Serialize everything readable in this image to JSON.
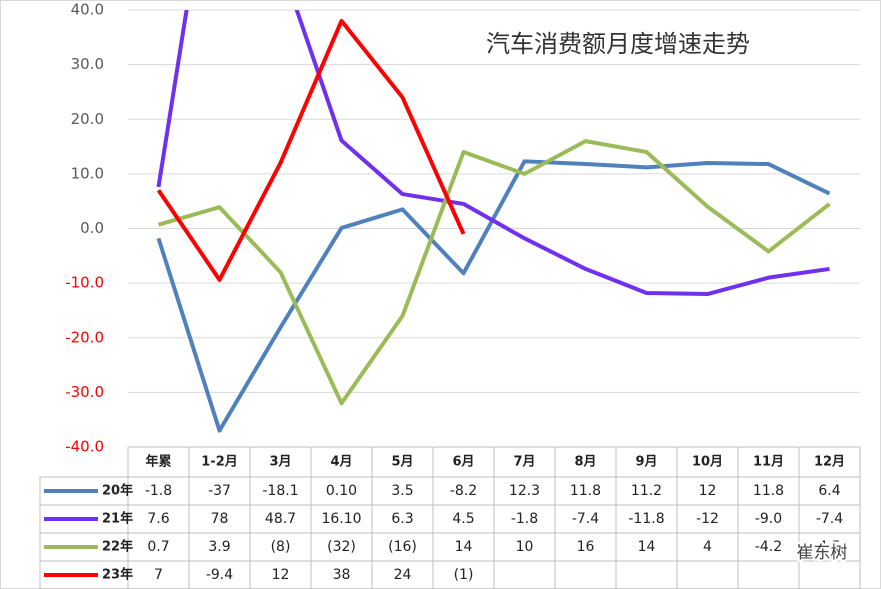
{
  "chart_data": {
    "type": "line",
    "title": "汽车消费额月度增速走势",
    "watermark": "崔东树",
    "categories": [
      "年累",
      "1-2月",
      "3月",
      "4月",
      "5月",
      "6月",
      "7月",
      "8月",
      "9月",
      "10月",
      "11月",
      "12月"
    ],
    "series": [
      {
        "name": "20年",
        "color": "#4f81bd",
        "values": [
          -1.8,
          -37,
          -18.1,
          0.1,
          3.5,
          -8.2,
          12.3,
          11.8,
          11.2,
          12,
          11.8,
          6.4
        ],
        "value_labels": [
          "-1.8",
          "-37",
          "-18.1",
          "0.10",
          "3.5",
          "-8.2",
          "12.3",
          "11.8",
          "11.2",
          "12",
          "11.8",
          "6.4"
        ]
      },
      {
        "name": "21年",
        "color": "#7030f0",
        "values": [
          7.6,
          78,
          48.7,
          16.1,
          6.3,
          4.5,
          -1.8,
          -7.4,
          -11.8,
          -12,
          -9.0,
          -7.4
        ],
        "value_labels": [
          "7.6",
          "78",
          "48.7",
          "16.10",
          "6.3",
          "4.5",
          "-1.8",
          "-7.4",
          "-11.8",
          "-12",
          "-9.0",
          "-7.4"
        ]
      },
      {
        "name": "22年",
        "color": "#9bbb59",
        "values": [
          0.7,
          3.9,
          -8,
          -32,
          -16,
          14,
          10,
          16,
          14,
          4,
          -4.2,
          4.5
        ],
        "value_labels": [
          "0.7",
          "3.9",
          "(8)",
          "(32)",
          "(16)",
          "14",
          "10",
          "16",
          "14",
          "4",
          "-4.2",
          "4.5"
        ]
      },
      {
        "name": "23年",
        "color": "#ff0000",
        "values": [
          7,
          -9.4,
          12,
          38,
          24,
          -1,
          null,
          null,
          null,
          null,
          null,
          null
        ],
        "value_labels": [
          "7",
          "-9.4",
          "12",
          "38",
          "24",
          "(1)",
          null,
          null,
          null,
          null,
          null,
          null
        ]
      }
    ],
    "ylim": [
      -40,
      40
    ],
    "yticks": [
      {
        "value": 40,
        "label": "40.0"
      },
      {
        "value": 30,
        "label": "30.0"
      },
      {
        "value": 20,
        "label": "20.0"
      },
      {
        "value": 10,
        "label": "10.0"
      },
      {
        "value": 0,
        "label": "0.0"
      },
      {
        "value": -10,
        "label": "-10.0"
      },
      {
        "value": -20,
        "label": "-20.0"
      },
      {
        "value": -30,
        "label": "-30.0"
      },
      {
        "value": -40,
        "label": "-40.0"
      }
    ],
    "negative_tick_color": "#ff0000",
    "grid": true
  }
}
